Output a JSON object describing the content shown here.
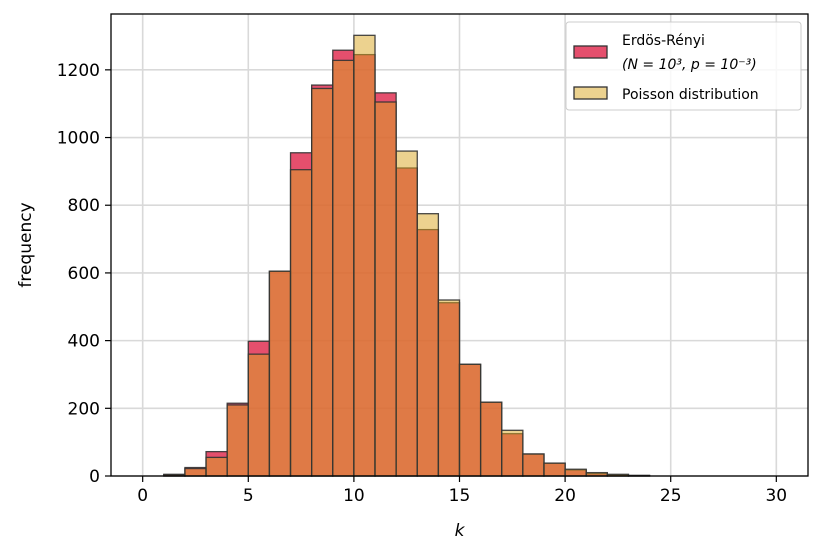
{
  "chart_data": {
    "type": "bar",
    "subtype": "overlaid-histogram",
    "xlabel": "k",
    "ylabel": "frequency",
    "xlim": [
      -1.5,
      31.5
    ],
    "ylim": [
      0,
      1365
    ],
    "xticks": [
      0,
      5,
      10,
      15,
      20,
      25,
      30
    ],
    "yticks": [
      0,
      200,
      400,
      600,
      800,
      1000,
      1200
    ],
    "grid": true,
    "bin_width": 1,
    "bin_starts": [
      0,
      1,
      2,
      3,
      4,
      5,
      6,
      7,
      8,
      9,
      10,
      11,
      12,
      13,
      14,
      15,
      16,
      17,
      18,
      19,
      20,
      21,
      22,
      23,
      24,
      25,
      26,
      27,
      28,
      29
    ],
    "legend_position": "top-right",
    "series": [
      {
        "name_line1": "Erdös-Rényi",
        "name_line2": "(N = 10³, p = 10⁻³)",
        "color": "#dc143c",
        "opacity": 0.75,
        "values": [
          0,
          5,
          25,
          72,
          215,
          398,
          605,
          955,
          1155,
          1258,
          1245,
          1132,
          910,
          728,
          512,
          330,
          218,
          125,
          65,
          38,
          18,
          7,
          3,
          1,
          0,
          0,
          0,
          0,
          0,
          0
        ]
      },
      {
        "name": "Poisson distribution",
        "color": "#daa520",
        "opacity": 0.5,
        "values": [
          0,
          4,
          22,
          55,
          210,
          360,
          605,
          905,
          1145,
          1228,
          1302,
          1105,
          960,
          775,
          520,
          330,
          218,
          135,
          65,
          38,
          20,
          10,
          5,
          2,
          0,
          0,
          0,
          0,
          0,
          0
        ]
      }
    ]
  }
}
